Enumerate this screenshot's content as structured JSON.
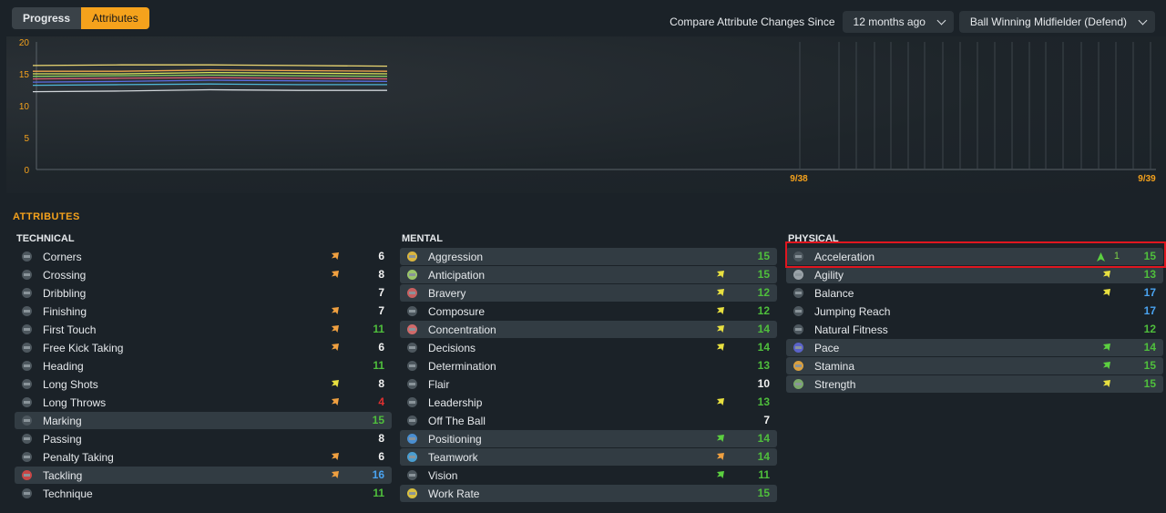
{
  "tabs": [
    {
      "label": "Progress",
      "active": false
    },
    {
      "label": "Attributes",
      "active": true
    }
  ],
  "compare": {
    "label": "Compare Attribute Changes Since",
    "period": "12 months ago",
    "role": "Ball Winning Midfielder (Defend)"
  },
  "chart_data": {
    "type": "line",
    "title": "",
    "xlabel": "",
    "ylabel": "",
    "ylim": [
      0,
      20
    ],
    "yticks": [
      "0",
      "5",
      "10",
      "15",
      "20"
    ],
    "xtick_labels": [
      "9/38",
      "9/39"
    ],
    "series": [
      {
        "color": "#ecd872",
        "values": [
          16.3,
          16.4,
          16.4,
          16.3,
          16.2
        ]
      },
      {
        "color": "#f0a84c",
        "values": [
          15.4,
          15.4,
          15.6,
          15.5,
          15.4
        ]
      },
      {
        "color": "#d9e45a",
        "values": [
          15.0,
          15.0,
          15.2,
          15.1,
          15.0
        ]
      },
      {
        "color": "#8fd160",
        "values": [
          14.6,
          14.7,
          14.8,
          14.7,
          14.6
        ]
      },
      {
        "color": "#d85f70",
        "values": [
          14.2,
          14.3,
          14.4,
          14.3,
          14.2
        ]
      },
      {
        "color": "#5a6ce0",
        "values": [
          13.7,
          13.8,
          14.0,
          13.9,
          13.8
        ]
      },
      {
        "color": "#4fb6d6",
        "values": [
          13.2,
          13.3,
          13.4,
          13.3,
          13.3
        ]
      },
      {
        "color": "#cfd4d8",
        "values": [
          12.2,
          12.3,
          12.5,
          12.4,
          12.4
        ]
      }
    ]
  },
  "section_title": "ATTRIBUTES",
  "technical": {
    "title": "TECHNICAL",
    "rows": [
      {
        "name": "Corners",
        "value": "6",
        "value_color": "#f2f2f2",
        "arrow": "up-orange",
        "hl": false
      },
      {
        "name": "Crossing",
        "value": "8",
        "value_color": "#f2f2f2",
        "arrow": "up-orange",
        "hl": false
      },
      {
        "name": "Dribbling",
        "value": "7",
        "value_color": "#f2f2f2",
        "arrow": "",
        "hl": false
      },
      {
        "name": "Finishing",
        "value": "7",
        "value_color": "#f2f2f2",
        "arrow": "up-orange",
        "hl": false
      },
      {
        "name": "First Touch",
        "value": "11",
        "value_color": "#4fbf3c",
        "arrow": "up-orange",
        "hl": false
      },
      {
        "name": "Free Kick Taking",
        "value": "6",
        "value_color": "#f2f2f2",
        "arrow": "up-orange",
        "hl": false
      },
      {
        "name": "Heading",
        "value": "11",
        "value_color": "#4fbf3c",
        "arrow": "",
        "hl": false
      },
      {
        "name": "Long Shots",
        "value": "8",
        "value_color": "#f2f2f2",
        "arrow": "up-yellow",
        "hl": false
      },
      {
        "name": "Long Throws",
        "value": "4",
        "value_color": "#e03030",
        "arrow": "up-orange",
        "hl": false
      },
      {
        "name": "Marking",
        "value": "15",
        "value_color": "#4fbf3c",
        "arrow": "",
        "hl": true
      },
      {
        "name": "Passing",
        "value": "8",
        "value_color": "#f2f2f2",
        "arrow": "",
        "hl": false
      },
      {
        "name": "Penalty Taking",
        "value": "6",
        "value_color": "#f2f2f2",
        "arrow": "up-orange",
        "hl": false
      },
      {
        "name": "Tackling",
        "value": "16",
        "value_color": "#4aa3f0",
        "arrow": "up-orange",
        "hl": true,
        "icon_color": "#c84646"
      },
      {
        "name": "Technique",
        "value": "11",
        "value_color": "#4fbf3c",
        "arrow": "",
        "hl": false
      }
    ]
  },
  "mental": {
    "title": "MENTAL",
    "rows": [
      {
        "name": "Aggression",
        "value": "15",
        "value_color": "#4fbf3c",
        "arrow": "",
        "hl": true,
        "icon_color": "#d9b540"
      },
      {
        "name": "Anticipation",
        "value": "15",
        "value_color": "#4fbf3c",
        "arrow": "up-yellow",
        "hl": true,
        "icon_color": "#9ac56a"
      },
      {
        "name": "Bravery",
        "value": "12",
        "value_color": "#4fbf3c",
        "arrow": "up-yellow",
        "hl": true,
        "icon_color": "#c86060"
      },
      {
        "name": "Composure",
        "value": "12",
        "value_color": "#4fbf3c",
        "arrow": "up-yellow",
        "hl": false
      },
      {
        "name": "Concentration",
        "value": "14",
        "value_color": "#4fbf3c",
        "arrow": "up-yellow",
        "hl": true,
        "icon_color": "#d06a6a"
      },
      {
        "name": "Decisions",
        "value": "14",
        "value_color": "#4fbf3c",
        "arrow": "up-yellow",
        "hl": false
      },
      {
        "name": "Determination",
        "value": "13",
        "value_color": "#4fbf3c",
        "arrow": "",
        "hl": false
      },
      {
        "name": "Flair",
        "value": "10",
        "value_color": "#f2f2f2",
        "arrow": "",
        "hl": false
      },
      {
        "name": "Leadership",
        "value": "13",
        "value_color": "#4fbf3c",
        "arrow": "up-yellow",
        "hl": false
      },
      {
        "name": "Off The Ball",
        "value": "7",
        "value_color": "#f2f2f2",
        "arrow": "",
        "hl": false
      },
      {
        "name": "Positioning",
        "value": "14",
        "value_color": "#4fbf3c",
        "arrow": "up-green",
        "hl": true,
        "icon_color": "#4a8ed0"
      },
      {
        "name": "Teamwork",
        "value": "14",
        "value_color": "#4fbf3c",
        "arrow": "up-orange",
        "hl": true,
        "icon_color": "#4a9ed0"
      },
      {
        "name": "Vision",
        "value": "11",
        "value_color": "#4fbf3c",
        "arrow": "up-green",
        "hl": false
      },
      {
        "name": "Work Rate",
        "value": "15",
        "value_color": "#4fbf3c",
        "arrow": "",
        "hl": true,
        "icon_color": "#d9c040"
      }
    ]
  },
  "physical": {
    "title": "PHYSICAL",
    "rows": [
      {
        "name": "Acceleration",
        "value": "15",
        "value_color": "#4fbf3c",
        "arrow": "up-green-big",
        "change": "1",
        "hl": true
      },
      {
        "name": "Agility",
        "value": "13",
        "value_color": "#4fbf3c",
        "arrow": "up-yellow",
        "hl": true,
        "icon_color": "#9aa2a8"
      },
      {
        "name": "Balance",
        "value": "17",
        "value_color": "#4aa3f0",
        "arrow": "up-yellow",
        "hl": false
      },
      {
        "name": "Jumping Reach",
        "value": "17",
        "value_color": "#4aa3f0",
        "arrow": "",
        "hl": false
      },
      {
        "name": "Natural Fitness",
        "value": "12",
        "value_color": "#4fbf3c",
        "arrow": "",
        "hl": false
      },
      {
        "name": "Pace",
        "value": "14",
        "value_color": "#4fbf3c",
        "arrow": "up-green",
        "hl": true,
        "icon_color": "#5a62c8"
      },
      {
        "name": "Stamina",
        "value": "15",
        "value_color": "#4fbf3c",
        "arrow": "up-green",
        "hl": true,
        "icon_color": "#d9a040"
      },
      {
        "name": "Strength",
        "value": "15",
        "value_color": "#4fbf3c",
        "arrow": "up-yellow",
        "hl": true,
        "icon_color": "#7aa86a"
      }
    ]
  }
}
